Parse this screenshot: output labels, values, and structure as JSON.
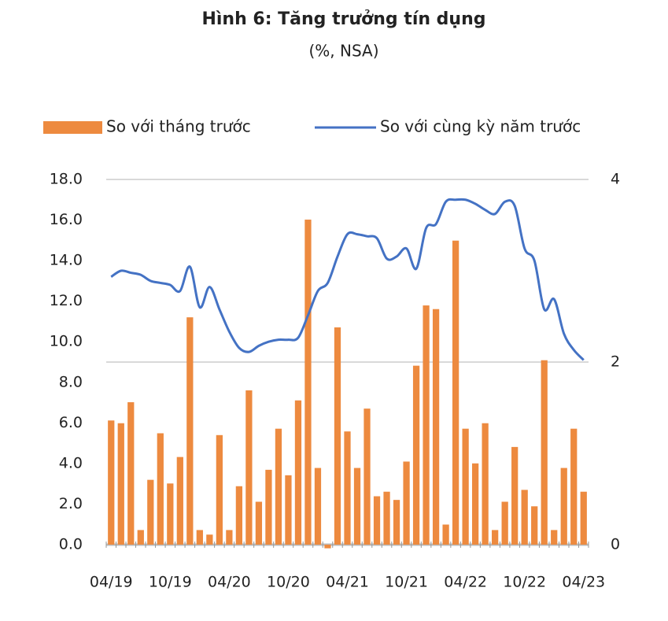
{
  "chart_data": {
    "type": "bar-line",
    "title": "Hình 6: Tăng trưởng tín dụng",
    "subtitle": "(%, NSA)",
    "categories": [
      "04/19",
      null,
      null,
      null,
      null,
      null,
      "10/19",
      null,
      null,
      null,
      null,
      null,
      "04/20",
      null,
      null,
      null,
      null,
      null,
      "10/20",
      null,
      null,
      null,
      null,
      null,
      "04/21",
      null,
      null,
      null,
      null,
      null,
      "10/21",
      null,
      null,
      null,
      null,
      null,
      "04/22",
      null,
      null,
      null,
      null,
      null,
      "10/22",
      null,
      null,
      null,
      null,
      null,
      "04/23"
    ],
    "series": [
      {
        "name": "So với tháng trước",
        "type": "bar",
        "axis": "y2",
        "color": "#ed8a3f",
        "values": [
          1.36,
          1.33,
          1.56,
          0.16,
          0.71,
          1.22,
          0.67,
          0.96,
          2.49,
          0.16,
          0.11,
          1.2,
          0.16,
          0.64,
          1.69,
          0.47,
          0.82,
          1.27,
          0.76,
          1.58,
          3.56,
          0.84,
          -0.04,
          2.38,
          1.24,
          0.84,
          1.49,
          0.53,
          0.58,
          0.49,
          0.91,
          1.96,
          2.62,
          2.58,
          0.22,
          3.33,
          1.27,
          0.89,
          1.33,
          0.16,
          0.47,
          1.07,
          0.6,
          0.42,
          2.02,
          0.16,
          0.84,
          1.27,
          0.58
        ]
      },
      {
        "name": "So với cùng kỳ năm trước",
        "type": "line",
        "color": "#4472c4",
        "values": [
          13.2,
          13.5,
          13.4,
          13.3,
          13.0,
          12.9,
          12.8,
          12.5,
          13.7,
          11.7,
          12.7,
          11.6,
          10.5,
          9.7,
          9.5,
          9.8,
          10.0,
          10.1,
          10.1,
          10.2,
          11.3,
          12.5,
          12.9,
          14.2,
          15.3,
          15.3,
          15.2,
          15.1,
          14.1,
          14.2,
          14.6,
          13.6,
          15.6,
          15.8,
          16.9,
          17.0,
          17.0,
          16.8,
          16.5,
          16.3,
          16.9,
          16.7,
          14.6,
          14.0,
          11.6,
          12.1,
          10.4,
          9.6,
          9.1
        ]
      }
    ],
    "ylim": [
      0,
      18
    ],
    "yticks": [
      {
        "value": 0,
        "label": "0.0"
      },
      {
        "value": 2,
        "label": "2.0"
      },
      {
        "value": 4,
        "label": "4.0"
      },
      {
        "value": 6,
        "label": "6.0"
      },
      {
        "value": 8,
        "label": "8.0"
      },
      {
        "value": 10,
        "label": "10.0"
      },
      {
        "value": 12,
        "label": "12.0"
      },
      {
        "value": 14,
        "label": "14.0"
      },
      {
        "value": 16,
        "label": "16.0"
      },
      {
        "value": 18,
        "label": "18.0"
      }
    ],
    "y2lim": [
      0,
      4
    ],
    "y2ticks": [
      0,
      2,
      4
    ],
    "grid": true,
    "legend": "top"
  }
}
